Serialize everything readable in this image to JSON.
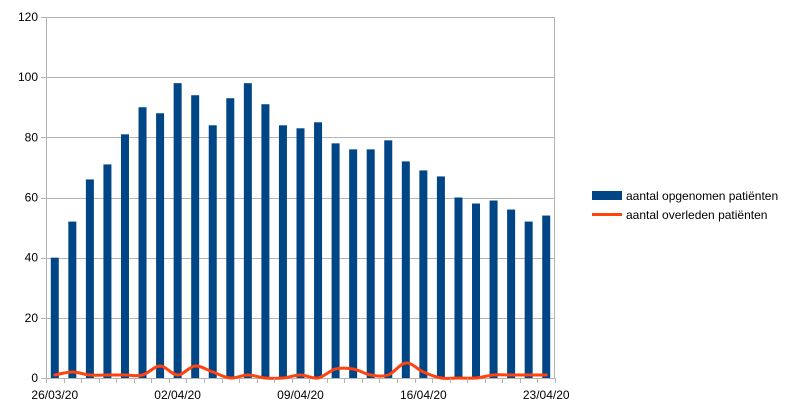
{
  "chart_data": {
    "type": "bar",
    "x": [
      "26/03/20",
      "27/03/20",
      "28/03/20",
      "29/03/20",
      "30/03/20",
      "31/03/20",
      "01/04/20",
      "02/04/20",
      "03/04/20",
      "04/04/20",
      "05/04/20",
      "06/04/20",
      "07/04/20",
      "08/04/20",
      "09/04/20",
      "10/04/20",
      "11/04/20",
      "12/04/20",
      "13/04/20",
      "14/04/20",
      "15/04/20",
      "16/04/20",
      "17/04/20",
      "18/04/20",
      "19/04/20",
      "20/04/20",
      "21/04/20",
      "22/04/20",
      "23/04/20"
    ],
    "x_tick_labels": [
      "26/03/20",
      "02/04/20",
      "09/04/20",
      "16/04/20",
      "23/04/20"
    ],
    "series": [
      {
        "name": "aantal opgenomen patiënten",
        "kind": "bar",
        "color": "#004586",
        "values": [
          40,
          52,
          66,
          71,
          81,
          90,
          88,
          98,
          94,
          84,
          93,
          98,
          91,
          84,
          83,
          85,
          78,
          76,
          76,
          79,
          72,
          69,
          67,
          60,
          58,
          59,
          56,
          52,
          54
        ]
      },
      {
        "name": "aantal overleden patiënten",
        "kind": "line",
        "color": "#ff420e",
        "values": [
          1,
          2,
          1,
          1,
          1,
          1,
          4,
          1,
          4,
          2,
          0,
          1,
          0,
          0,
          1,
          0,
          3,
          3,
          1,
          1,
          5,
          2,
          0,
          0,
          0,
          1,
          1,
          1,
          1
        ]
      }
    ],
    "ylim": [
      0,
      120
    ],
    "yticks": [
      0,
      20,
      40,
      60,
      80,
      100,
      120
    ],
    "grid": true,
    "legend_position": "right"
  }
}
